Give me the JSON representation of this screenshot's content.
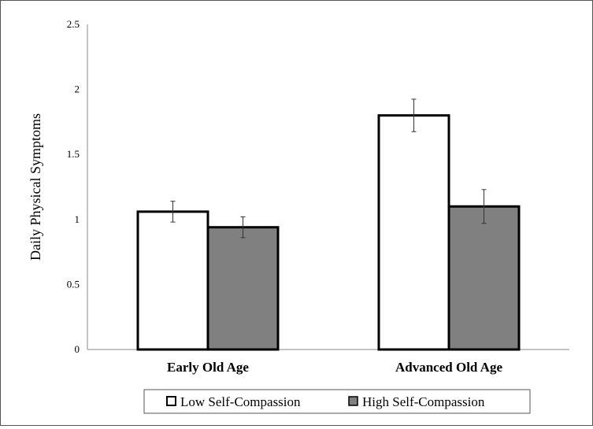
{
  "chart_data": {
    "type": "bar",
    "categories": [
      "Early Old Age",
      "Advanced Old Age"
    ],
    "series": [
      {
        "name": "Low Self-Compassion",
        "values": [
          1.06,
          1.8
        ],
        "errors": [
          0.08,
          0.125
        ],
        "color": "#ffffff"
      },
      {
        "name": "High Self-Compassion",
        "values": [
          0.94,
          1.1
        ],
        "errors": [
          0.08,
          0.13
        ],
        "color": "#808080"
      }
    ],
    "ylabel": "Daily Physical Symptoms",
    "xlabel": "",
    "ylim": [
      0,
      2.5
    ],
    "yticks": [
      "0",
      "0.5",
      "1",
      "1.5",
      "2",
      "2.5"
    ],
    "grid": false,
    "legend_position": "bottom"
  }
}
